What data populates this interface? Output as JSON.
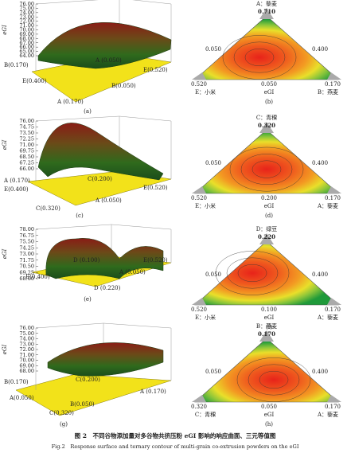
{
  "panels": [
    {
      "surface": {
        "y_label": "eGI",
        "yticks": [
          "76.00",
          "75.00",
          "74.00",
          "73.00",
          "72.00",
          "71.00",
          "70.00",
          "69.00",
          "68.00",
          "67.00",
          "66.00",
          "65.00",
          "64.00"
        ],
        "labels": [
          "B(0.170)",
          "A (0.050)",
          "E(0.520)",
          "E(0.400)",
          "B(0.050)",
          "A (0.170)"
        ],
        "caption": "(a)"
      },
      "ternary": {
        "top": "A：藜麦",
        "top_value": "0.710",
        "left_value": "0.050",
        "right_value": "0.400",
        "bottom_values": [
          "0.520",
          "0.050",
          "0.170"
        ],
        "bottom_names": [
          "E：小米",
          "eGI",
          "B：燕麦"
        ],
        "caption": "(b)"
      }
    },
    {
      "surface": {
        "y_label": "eGI",
        "yticks": [
          "76.00",
          "74.75",
          "73.50",
          "72.25",
          "71.00",
          "69.75",
          "68.50",
          "67.25",
          "66.00"
        ],
        "labels": [
          "A (0.170)",
          "E(0.400)",
          "C(0.200)",
          "E(0.520)",
          "C(0.320)",
          "A (0.050)"
        ],
        "caption": "(c)"
      },
      "ternary": {
        "top": "C：青稞",
        "top_value": "0.320",
        "left_value": "0.050",
        "right_value": "0.400",
        "bottom_values": [
          "0.520",
          "0.200",
          "0.170"
        ],
        "bottom_names": [
          "E：小米",
          "eGI",
          "A：藜麦"
        ],
        "caption": "(d)"
      }
    },
    {
      "surface": {
        "y_label": "eGI",
        "yticks": [
          "78.00",
          "76.75",
          "75.50",
          "74.25",
          "73.00",
          "71.75",
          "70.50",
          "69.25",
          "68.00"
        ],
        "labels": [
          "D (0.100)",
          "E(0.520)",
          "E(0.400)",
          "A (0.050)",
          "D (0.220)"
        ],
        "caption": "(e)"
      },
      "ternary": {
        "top": "D：绿豆",
        "top_value": "0.220",
        "left_value": "0.050",
        "right_value": "0.400",
        "bottom_values": [
          "0.520",
          "0.100",
          "0.170"
        ],
        "bottom_names": [
          "E：小米",
          "eGI",
          "A：藜麦"
        ],
        "caption": "(f)"
      }
    },
    {
      "surface": {
        "y_label": "eGI",
        "yticks": [
          "76.00",
          "75.00",
          "74.00",
          "73.00",
          "72.00",
          "71.00",
          "70.00",
          "69.00",
          "68.00"
        ],
        "labels": [
          "B(0.170)",
          "C(0.200)",
          "A(0.050)",
          "A (0.170)",
          "B(0.050)",
          "C(0.320)"
        ],
        "caption": "(g)"
      },
      "ternary": {
        "top": "B：燕麦",
        "top_value": "0.170",
        "left_value": "0.050",
        "right_value": "0.400",
        "bottom_values": [
          "0.320",
          "0.050",
          "0.170"
        ],
        "bottom_names": [
          "C：青稞",
          "eGI",
          "A：藜麦"
        ],
        "caption": "(h)"
      }
    }
  ],
  "caption_cn": "图 2　不同谷物添加量对多谷物共挤压粉 eGI 影响的响应曲面、三元等值图",
  "caption_en": "Fig.2　Response surface and ternary contour of multi-grain co-extrusion powders on the eGI"
}
